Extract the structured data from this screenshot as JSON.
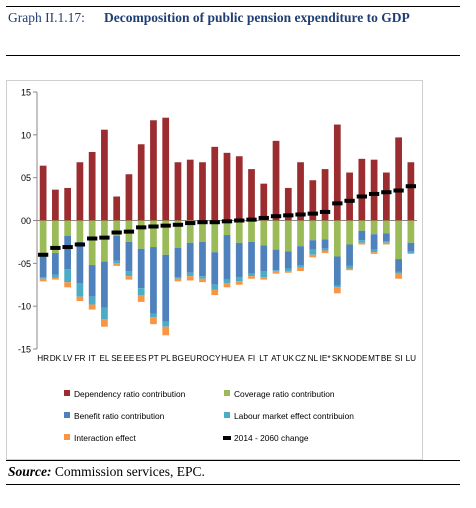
{
  "caption": {
    "number": "Graph II.1.17:",
    "title": "Decomposition of public pension expenditure to GDP"
  },
  "source": {
    "label": "Source:",
    "text": "Commission services, EPC."
  },
  "chart_data": {
    "type": "bar",
    "stacked": true,
    "categories": [
      "HR",
      "DK",
      "LV",
      "FR",
      "IT",
      "EL",
      "SE",
      "EE",
      "ES",
      "PT",
      "PL",
      "BG",
      "EU",
      "RO",
      "CY",
      "HU",
      "EA",
      "FI",
      "LT",
      "AT",
      "UK",
      "CZ",
      "NL",
      "IE*",
      "SK",
      "NO",
      "DE",
      "MT",
      "BE",
      "SI",
      "LU"
    ],
    "ylim": [
      -15,
      15
    ],
    "yticks": [
      15,
      10,
      5,
      0,
      -5,
      -10,
      -15
    ],
    "ytick_labels": [
      "15",
      "10",
      "05",
      "00",
      "-05",
      "-10",
      "-15"
    ],
    "grid": false,
    "legend_position": "bottom",
    "series": [
      {
        "name": "Dependency ratio contribution",
        "color": "#9b2d30",
        "kind": "bar",
        "values": [
          6.4,
          3.6,
          3.8,
          6.8,
          8.0,
          10.6,
          2.8,
          5.4,
          8.9,
          11.7,
          12.0,
          6.8,
          7.1,
          6.8,
          8.6,
          7.9,
          7.5,
          6.0,
          4.3,
          9.3,
          3.8,
          6.8,
          4.7,
          6.0,
          11.2,
          5.6,
          7.2,
          7.1,
          5.6,
          9.7,
          6.8
        ]
      },
      {
        "name": "Coverage ratio contribution",
        "color": "#9bbb59",
        "kind": "bar",
        "values": [
          -4.2,
          -3.8,
          -1.8,
          -2.5,
          -5.2,
          -4.8,
          -1.8,
          -2.5,
          -3.3,
          -3.1,
          -4.0,
          -3.2,
          -2.6,
          -2.5,
          -3.7,
          -1.7,
          -2.6,
          -2.5,
          -2.9,
          -3.4,
          -3.6,
          -3.0,
          -2.3,
          -2.2,
          -4.2,
          -2.8,
          -1.2,
          -1.6,
          -1.5,
          -4.5,
          -2.6
        ]
      },
      {
        "name": "Benefit ratio  contribution",
        "color": "#4f81bd",
        "kind": "bar",
        "values": [
          -2.4,
          -2.5,
          -3.9,
          -4.8,
          -3.7,
          -5.4,
          -2.9,
          -3.4,
          -4.6,
          -7.8,
          -7.8,
          -3.4,
          -3.5,
          -4.0,
          -3.8,
          -5.2,
          -4.0,
          -3.7,
          -3.0,
          -2.4,
          -2.0,
          -2.2,
          -1.1,
          -1.1,
          -3.4,
          -2.5,
          -1.1,
          -1.8,
          -0.9,
          -1.5,
          -1.0
        ]
      },
      {
        "name": "Labour market effect contribuion",
        "color": "#4bacc6",
        "kind": "bar",
        "values": [
          -0.2,
          -0.4,
          -1.5,
          -1.6,
          -0.9,
          -1.3,
          -0.3,
          -0.6,
          -0.8,
          -0.4,
          -0.6,
          -0.2,
          -0.4,
          -0.3,
          -0.6,
          -0.4,
          -0.5,
          -0.3,
          -0.7,
          -0.1,
          -0.3,
          -0.3,
          -0.6,
          -0.2,
          -0.2,
          -0.3,
          -0.3,
          -0.3,
          -0.2,
          -0.2,
          -0.2
        ]
      },
      {
        "name": "Interaction effect",
        "color": "#f79646",
        "kind": "bar",
        "values": [
          -0.3,
          -0.2,
          -0.6,
          -0.5,
          -0.6,
          -0.9,
          -0.3,
          -0.4,
          -0.8,
          -0.8,
          -1.0,
          -0.3,
          -0.5,
          -0.4,
          -0.6,
          -0.5,
          -0.4,
          -0.3,
          -0.3,
          -0.3,
          -0.2,
          -0.4,
          -0.3,
          -0.3,
          -0.7,
          -0.2,
          -0.2,
          -0.2,
          -0.2,
          -0.6,
          -0.1
        ]
      },
      {
        "name": "2014 - 2060 change",
        "color": "#000000",
        "kind": "dash",
        "values": [
          -4.0,
          -3.2,
          -3.1,
          -2.8,
          -2.1,
          -2.0,
          -1.4,
          -1.3,
          -0.8,
          -0.7,
          -0.6,
          -0.5,
          -0.3,
          -0.2,
          -0.2,
          -0.1,
          0.0,
          0.1,
          0.3,
          0.5,
          0.6,
          0.7,
          0.8,
          1.0,
          2.0,
          2.3,
          2.8,
          3.1,
          3.3,
          3.5,
          4.0
        ]
      }
    ]
  }
}
